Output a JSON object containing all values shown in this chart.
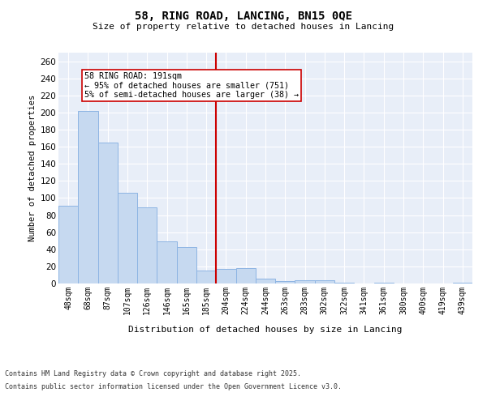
{
  "title": "58, RING ROAD, LANCING, BN15 0QE",
  "subtitle": "Size of property relative to detached houses in Lancing",
  "xlabel": "Distribution of detached houses by size in Lancing",
  "ylabel": "Number of detached properties",
  "categories": [
    "48sqm",
    "68sqm",
    "87sqm",
    "107sqm",
    "126sqm",
    "146sqm",
    "165sqm",
    "185sqm",
    "204sqm",
    "224sqm",
    "244sqm",
    "263sqm",
    "283sqm",
    "302sqm",
    "322sqm",
    "341sqm",
    "361sqm",
    "380sqm",
    "400sqm",
    "419sqm",
    "439sqm"
  ],
  "values": [
    91,
    202,
    165,
    106,
    89,
    49,
    43,
    15,
    17,
    18,
    6,
    3,
    4,
    4,
    1,
    0,
    1,
    0,
    0,
    0,
    1
  ],
  "bar_color": "#c6d9f0",
  "bar_edgecolor": "#8db4e3",
  "vline_pos": 7.5,
  "vline_color": "#cc0000",
  "annotation_title": "58 RING ROAD: 191sqm",
  "annotation_line1": "← 95% of detached houses are smaller (751)",
  "annotation_line2": "5% of semi-detached houses are larger (38) →",
  "annotation_box_color": "#cc0000",
  "ylim": [
    0,
    270
  ],
  "yticks": [
    0,
    20,
    40,
    60,
    80,
    100,
    120,
    140,
    160,
    180,
    200,
    220,
    240,
    260
  ],
  "background_color": "#e8eef8",
  "footer_line1": "Contains HM Land Registry data © Crown copyright and database right 2025.",
  "footer_line2": "Contains public sector information licensed under the Open Government Licence v3.0."
}
